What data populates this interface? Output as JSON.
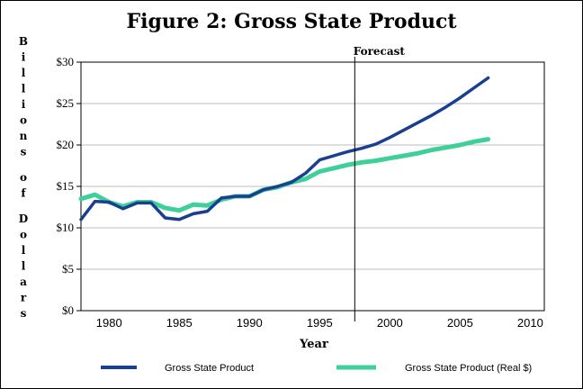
{
  "chart_data": {
    "type": "line",
    "title": "Figure 2:  Gross State Product",
    "xlabel": "Year",
    "ylabel": "Billions of Dollars",
    "xlim": [
      1978,
      2011
    ],
    "ylim": [
      0,
      30
    ],
    "x_ticks": [
      1980,
      1985,
      1990,
      1995,
      2000,
      2005,
      2010
    ],
    "y_ticks": [
      "$0",
      "$5",
      "$10",
      "$15",
      "$20",
      "$25",
      "$30"
    ],
    "y_tick_values": [
      0,
      5,
      10,
      15,
      20,
      25,
      30
    ],
    "grid": "horizontal",
    "legend_position": "bottom",
    "annotation": {
      "label": "Forecast",
      "x": 1997.5
    },
    "series": [
      {
        "name": "Gross State Product",
        "color": "#1b3f8f",
        "x": [
          1978,
          1979,
          1980,
          1981,
          1982,
          1983,
          1984,
          1985,
          1986,
          1987,
          1988,
          1989,
          1990,
          1991,
          1992,
          1993,
          1994,
          1995,
          1996,
          1997,
          1998,
          1999,
          2000,
          2001,
          2002,
          2003,
          2004,
          2005,
          2006,
          2007
        ],
        "values": [
          11.0,
          13.2,
          13.1,
          12.3,
          13.0,
          13.0,
          11.2,
          11.0,
          11.7,
          12.0,
          13.6,
          13.8,
          13.8,
          14.6,
          15.0,
          15.5,
          16.6,
          18.2,
          18.7,
          19.2,
          19.6,
          20.1,
          20.9,
          21.8,
          22.7,
          23.6,
          24.6,
          25.7,
          26.9,
          28.1
        ]
      },
      {
        "name": "Gross State Product (Real $)",
        "color": "#3ecf9a",
        "x": [
          1978,
          1979,
          1980,
          1981,
          1982,
          1983,
          1984,
          1985,
          1986,
          1987,
          1988,
          1989,
          1990,
          1991,
          1992,
          1993,
          1994,
          1995,
          1996,
          1997,
          1998,
          1999,
          2000,
          2001,
          2002,
          2003,
          2004,
          2005,
          2006,
          2007
        ],
        "values": [
          13.5,
          14.0,
          13.1,
          12.6,
          13.1,
          13.1,
          12.4,
          12.1,
          12.8,
          12.7,
          13.4,
          13.8,
          13.8,
          14.6,
          14.9,
          15.5,
          15.9,
          16.8,
          17.2,
          17.6,
          17.9,
          18.1,
          18.4,
          18.7,
          19.0,
          19.4,
          19.7,
          20.0,
          20.4,
          20.7
        ]
      }
    ]
  }
}
